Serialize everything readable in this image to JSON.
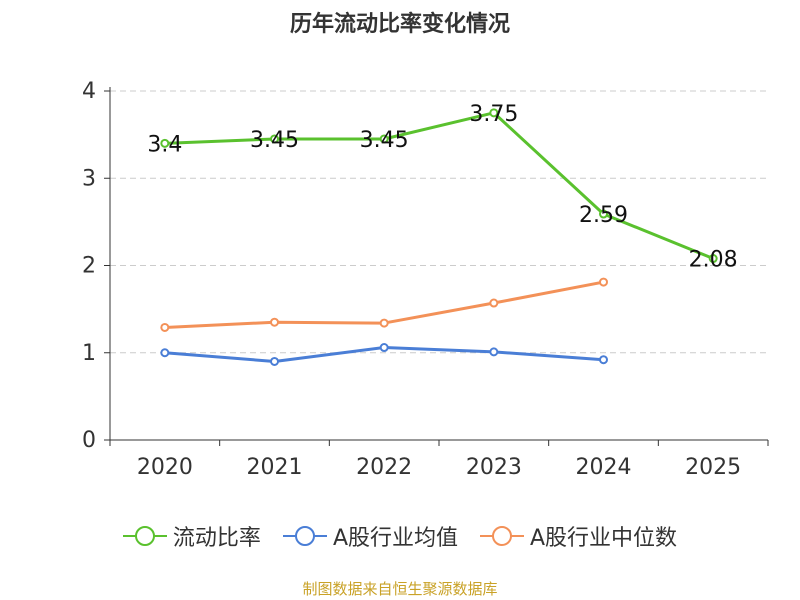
{
  "chart_data": {
    "type": "line",
    "title": "历年流动比率变化情况",
    "categories": [
      "2020",
      "2021",
      "2022",
      "2023",
      "2024",
      "2025"
    ],
    "ylim": [
      0,
      4
    ],
    "yticks": [
      "0",
      "1",
      "2",
      "3",
      "4"
    ],
    "grid": true,
    "legend_position": "bottom",
    "series": [
      {
        "name": "流动比率",
        "color": "#5ac12e",
        "values": [
          3.4,
          3.45,
          3.45,
          3.75,
          2.59,
          2.08
        ],
        "labels": [
          "3.4",
          "3.45",
          "3.45",
          "3.75",
          "2.59",
          "2.08"
        ]
      },
      {
        "name": "A股行业均值",
        "color": "#4a7ed6",
        "values": [
          1.0,
          0.9,
          1.06,
          1.01,
          0.92,
          null
        ]
      },
      {
        "name": "A股行业中位数",
        "color": "#f39158",
        "values": [
          1.29,
          1.35,
          1.34,
          1.57,
          1.81,
          null
        ]
      }
    ],
    "source": "制图数据来自恒生聚源数据库"
  }
}
